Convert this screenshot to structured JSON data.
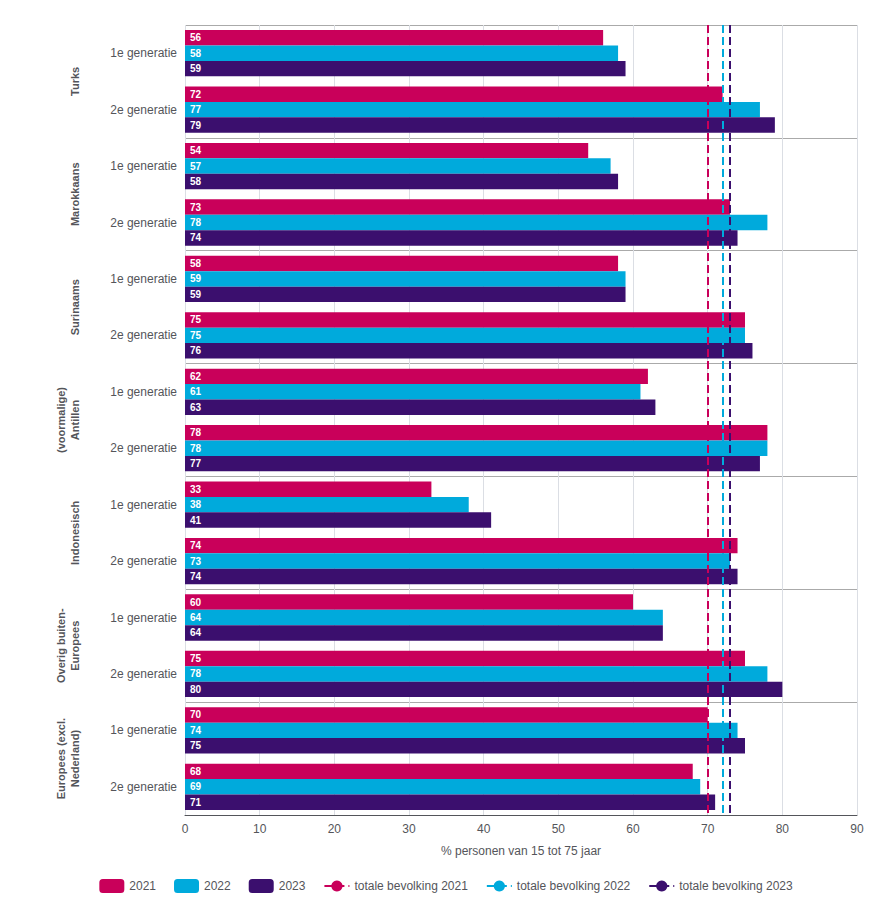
{
  "chart_data": {
    "type": "bar",
    "orientation": "horizontal",
    "xlabel": "% personen van 15 tot 75 jaar",
    "categories": [
      "1e generatie",
      "2e generatie",
      "1e generatie",
      "2e generatie",
      "1e generatie",
      "2e generatie",
      "1e generatie",
      "2e generatie",
      "1e generatie",
      "2e generatie",
      "1e generatie",
      "2e generatie",
      "1e generatie",
      "2e generatie"
    ],
    "category_groups": [
      "Turks",
      "Turks",
      "Marokkaans",
      "Marokkaans",
      "Surinaams",
      "Surinaams",
      "(voormalige)\nAntillen",
      "(voormalige)\nAntillen",
      "Indonesisch",
      "Indonesisch",
      "Overig buiten-\nEuropees",
      "Overig buiten-\nEuropees",
      "Europees (excl.\nNederland)",
      "Europees (excl.\nNederland)"
    ],
    "series": [
      {
        "name": "2021",
        "color": "#c9005a",
        "values": [
          56,
          72,
          54,
          73,
          58,
          75,
          62,
          78,
          33,
          74,
          60,
          75,
          70,
          68
        ]
      },
      {
        "name": "2022",
        "color": "#00aadc",
        "values": [
          58,
          77,
          57,
          78,
          59,
          75,
          61,
          78,
          38,
          73,
          64,
          78,
          74,
          69
        ]
      },
      {
        "name": "2023",
        "color": "#3b0f6e",
        "values": [
          59,
          79,
          58,
          74,
          59,
          76,
          63,
          77,
          41,
          74,
          64,
          80,
          75,
          71
        ]
      }
    ],
    "reference_lines": [
      {
        "name": "totale bevolking 2021",
        "value": 70,
        "color": "#c9005a",
        "line_style": "dashed"
      },
      {
        "name": "totale bevolking 2022",
        "value": 72,
        "color": "#00aadc",
        "line_style": "dashed"
      },
      {
        "name": "totale bevolking 2023",
        "value": 73,
        "color": "#3b0f6e",
        "line_style": "dashed"
      }
    ],
    "xlim": [
      0,
      90
    ],
    "xticks": [
      0,
      10,
      20,
      30,
      40,
      50,
      60,
      70,
      80,
      90
    ],
    "data_labels": true,
    "grid": true,
    "legend": "bottom"
  }
}
